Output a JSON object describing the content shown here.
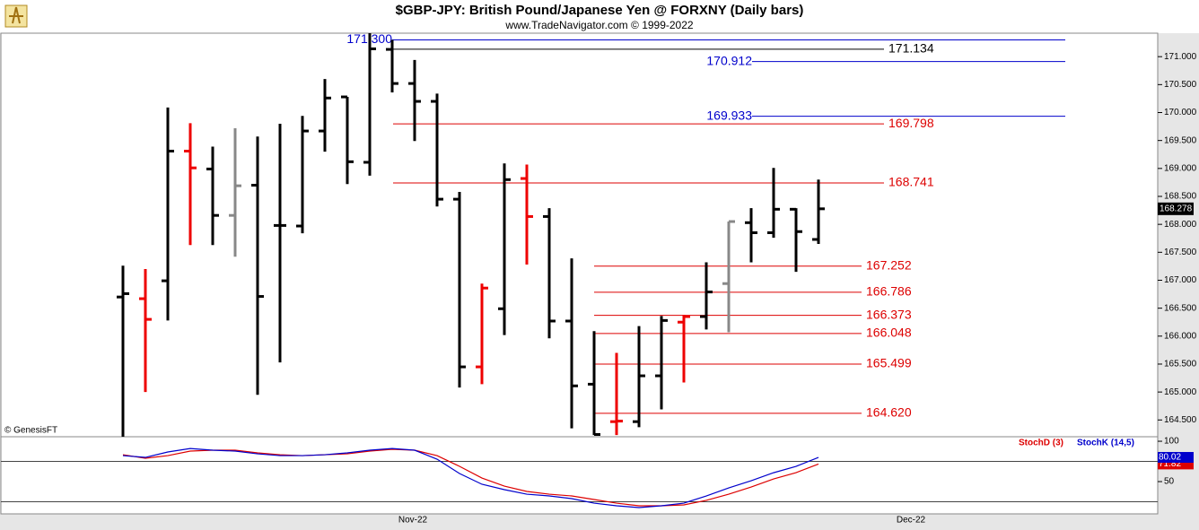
{
  "chart_data": [
    {
      "type": "ohlc",
      "title": "$GBP-JPY:  British Pound/Japanese Yen @ FORXNY  (Daily bars)",
      "subtitle": "www.TradeNavigator.com © 1999-2022",
      "annotations": [
        "© GenesisFT",
        "Dec-22"
      ],
      "categories": [
        null,
        null,
        null,
        null,
        null,
        null,
        null,
        null,
        null,
        null,
        null,
        null,
        null,
        "Nov-22",
        null,
        null,
        null,
        null,
        null,
        null,
        null,
        null,
        null,
        null,
        null,
        null,
        null,
        null,
        null,
        null,
        null,
        null
      ],
      "open": [
        166.7,
        166.67,
        166.99,
        169.31,
        168.99,
        168.16,
        168.7,
        167.98,
        167.97,
        169.67,
        170.28,
        169.11,
        171.13,
        170.52,
        170.2,
        168.45,
        165.45,
        166.49,
        168.82,
        168.14,
        166.27,
        165.14,
        164.47,
        164.47,
        165.29,
        166.25,
        166.35,
        166.94,
        168.03,
        167.85,
        168.27,
        167.73
      ],
      "high": [
        167.26,
        167.2,
        170.09,
        169.81,
        169.39,
        169.72,
        169.57,
        169.8,
        169.94,
        170.6,
        170.28,
        171.42,
        171.3,
        170.94,
        170.34,
        168.58,
        166.94,
        169.09,
        169.07,
        168.29,
        167.39,
        166.09,
        165.7,
        166.18,
        166.36,
        166.38,
        167.32,
        168.05,
        168.29,
        169.01,
        168.29,
        168.8
      ],
      "low": [
        164.15,
        165.0,
        166.28,
        167.63,
        167.63,
        167.42,
        164.95,
        165.53,
        167.84,
        169.3,
        168.72,
        168.87,
        170.36,
        169.49,
        168.32,
        165.08,
        165.14,
        166.02,
        167.28,
        165.96,
        164.35,
        164.23,
        164.23,
        164.37,
        164.69,
        165.17,
        166.12,
        166.07,
        167.32,
        167.76,
        167.15,
        167.65
      ],
      "close": [
        166.76,
        166.3,
        169.31,
        169.01,
        168.16,
        168.69,
        166.71,
        167.98,
        169.67,
        170.26,
        169.12,
        171.14,
        170.52,
        170.2,
        168.45,
        165.45,
        166.86,
        168.8,
        168.14,
        166.27,
        165.11,
        164.24,
        164.48,
        165.29,
        166.28,
        166.35,
        166.79,
        168.05,
        167.85,
        168.27,
        167.87,
        168.278
      ],
      "colors": [
        "#000000",
        "#ee0000",
        "#000000",
        "#ee0000",
        "#000000",
        "#888888",
        "#000000",
        "#000000",
        "#000000",
        "#000000",
        "#000000",
        "#000000",
        "#000000",
        "#000000",
        "#000000",
        "#000000",
        "#ee0000",
        "#000000",
        "#ee0000",
        "#000000",
        "#000000",
        "#000000",
        "#ee0000",
        "#000000",
        "#000000",
        "#ee0000",
        "#000000",
        "#888888",
        "#000000",
        "#000000",
        "#000000",
        "#000000"
      ],
      "levels": [
        {
          "value": 171.3,
          "label": "171.300",
          "color": "#0000cc"
        },
        {
          "value": 171.134,
          "label": "171.134",
          "color": "#000000"
        },
        {
          "value": 170.912,
          "label": "170.912",
          "color": "#0000cc"
        },
        {
          "value": 169.933,
          "label": "169.933",
          "color": "#0000cc"
        },
        {
          "value": 169.798,
          "label": "169.798",
          "color": "#dd0000"
        },
        {
          "value": 168.741,
          "label": "168.741",
          "color": "#dd0000"
        },
        {
          "value": 167.252,
          "label": "167.252",
          "color": "#dd0000"
        },
        {
          "value": 166.786,
          "label": "166.786",
          "color": "#dd0000"
        },
        {
          "value": 166.373,
          "label": "166.373",
          "color": "#dd0000"
        },
        {
          "value": 166.048,
          "label": "166.048",
          "color": "#dd0000"
        },
        {
          "value": 165.499,
          "label": "165.499",
          "color": "#dd0000"
        },
        {
          "value": 164.62,
          "label": "164.620",
          "color": "#dd0000"
        }
      ],
      "ylim": [
        164.2,
        171.42
      ],
      "yticks": [
        {
          "value": 164.5,
          "label": "164.500"
        },
        {
          "value": 165,
          "label": "165.000"
        },
        {
          "value": 165.5,
          "label": "165.500"
        },
        {
          "value": 166,
          "label": "166.000"
        },
        {
          "value": 166.5,
          "label": "166.500"
        },
        {
          "value": 167,
          "label": "167.000"
        },
        {
          "value": 167.5,
          "label": "167.500"
        },
        {
          "value": 168,
          "label": "168.000"
        },
        {
          "value": 168.5,
          "label": "168.500"
        },
        {
          "value": 169,
          "label": "169.000"
        },
        {
          "value": 169.5,
          "label": "169.500"
        },
        {
          "value": 170,
          "label": "170.000"
        },
        {
          "value": 170.5,
          "label": "170.500"
        },
        {
          "value": 171,
          "label": "171.000"
        }
      ]
    },
    {
      "type": "line",
      "series": [
        {
          "name": "StochD (3)",
          "color": "#dd0000",
          "values": [
            83.3,
            78.9,
            82.2,
            87.8,
            88.9,
            88.9,
            85.6,
            83.3,
            82.2,
            83.3,
            84.4,
            87.8,
            90,
            88.9,
            82.2,
            68.9,
            54.4,
            44.4,
            37.8,
            34.4,
            32.2,
            27.8,
            23.3,
            20,
            20,
            21.1,
            26.7,
            34.4,
            43.3,
            53.3,
            61.1,
            71.82
          ]
        },
        {
          "name": "StochK (14,5)",
          "color": "#0000cc",
          "values": [
            82.2,
            80,
            86.7,
            91,
            88.9,
            87.8,
            84.4,
            82.2,
            82.2,
            83.3,
            85.6,
            88.9,
            91,
            88.9,
            77.8,
            60,
            46.7,
            40,
            34.4,
            32.2,
            28.9,
            23.3,
            20,
            17.8,
            20,
            23.3,
            32.2,
            42.2,
            51.1,
            61,
            68.9,
            80.02
          ]
        }
      ],
      "levels": [
        75,
        25
      ],
      "ylim": [
        10,
        105.6
      ],
      "yticks": [
        50,
        100
      ]
    }
  ]
}
